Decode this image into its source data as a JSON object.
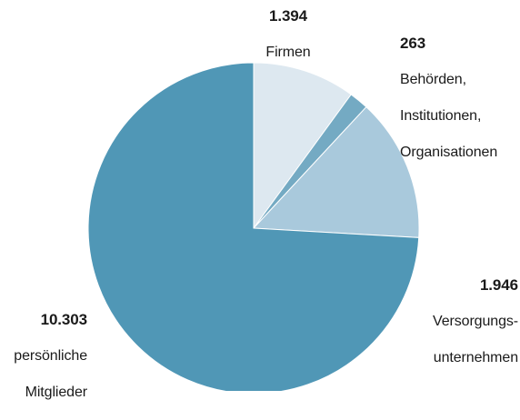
{
  "chart_data": {
    "type": "pie",
    "start_angle_deg": 0,
    "direction": "clockwise",
    "slices": [
      {
        "label_lines": [
          "Firmen"
        ],
        "value_text": "1.394",
        "value": 1394,
        "color": "#dde8f0"
      },
      {
        "label_lines": [
          "Behörden,",
          "Institutionen,",
          "Organisationen"
        ],
        "value_text": "263",
        "value": 263,
        "color": "#74aac3"
      },
      {
        "label_lines": [
          "Versorgungs-",
          "unternehmen"
        ],
        "value_text": "1.946",
        "value": 1946,
        "color": "#a9c9dc"
      },
      {
        "label_lines": [
          "persönliche",
          "Mitglieder"
        ],
        "value_text": "10.303",
        "value": 10303,
        "color": "#5097b6"
      }
    ]
  }
}
